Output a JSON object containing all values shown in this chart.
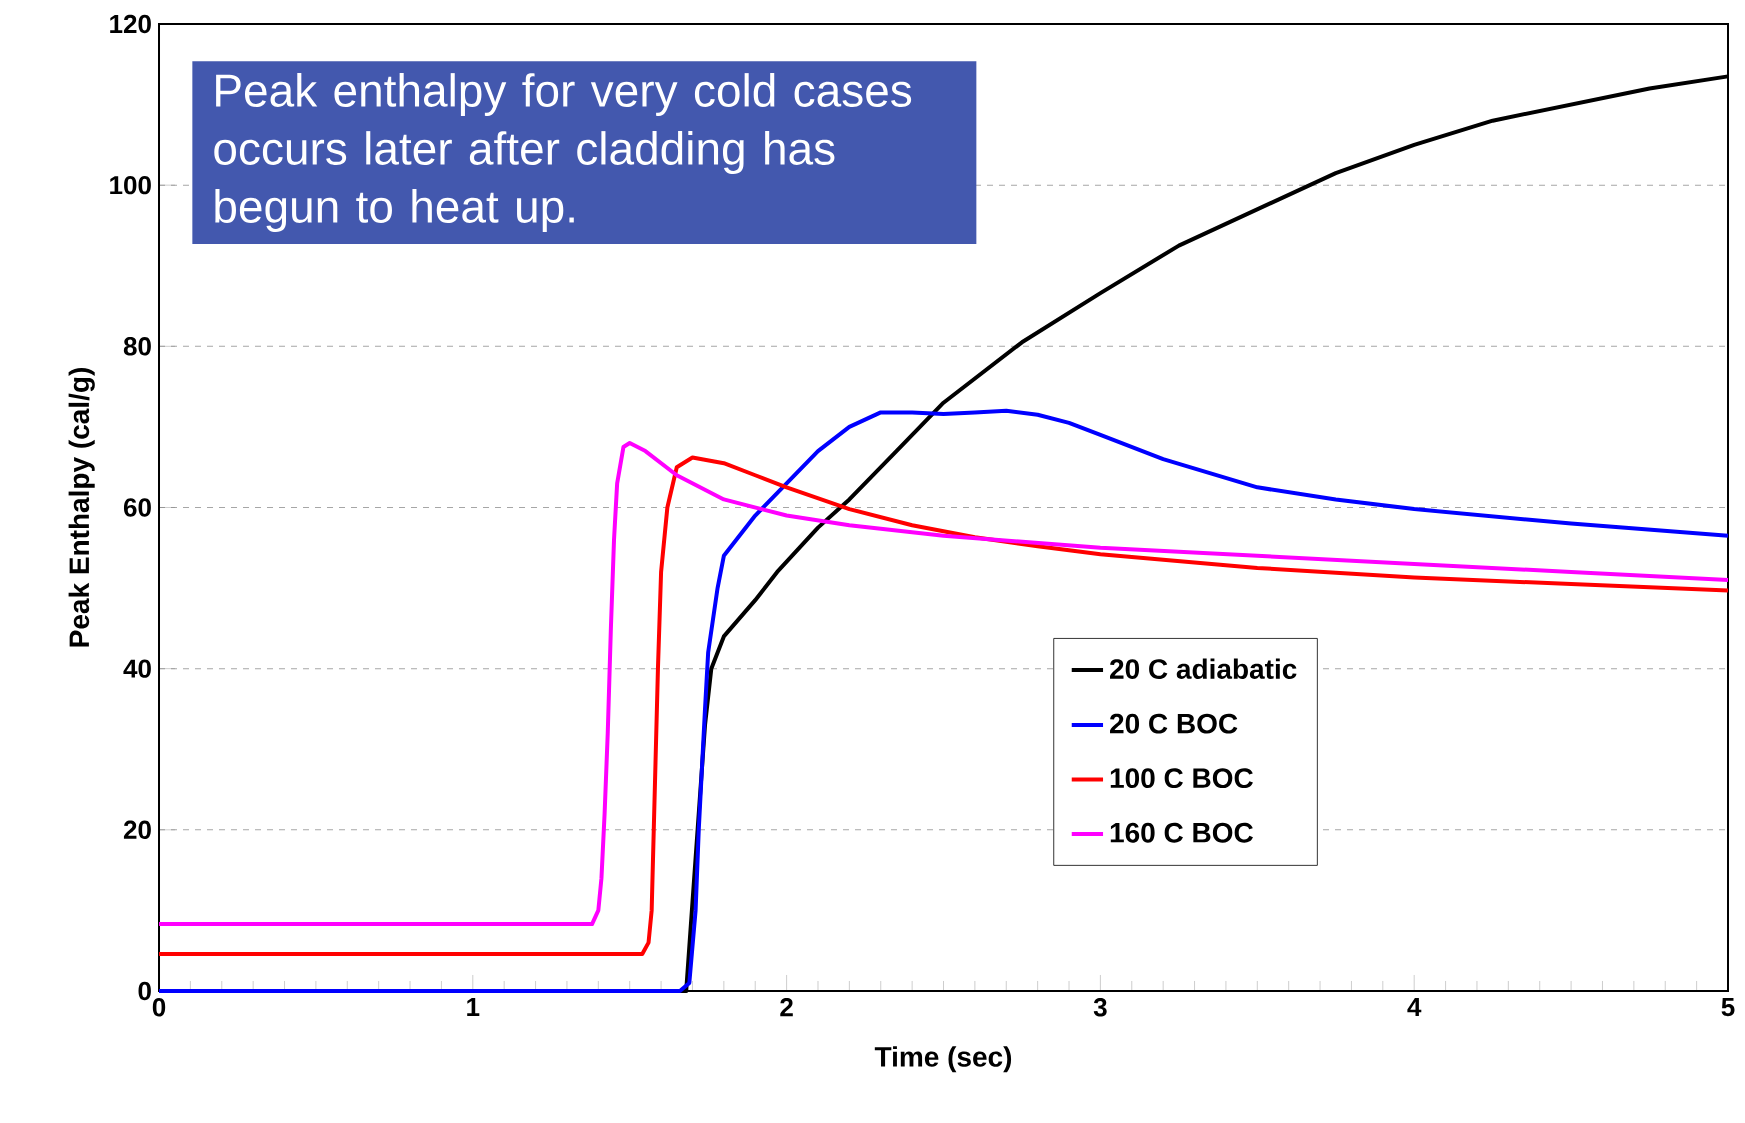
{
  "chart_data": {
    "type": "line",
    "xlabel": "Time (sec)",
    "ylabel": "Peak Enthalpy (cal/g)",
    "xlim": [
      0,
      5
    ],
    "ylim": [
      0,
      120
    ],
    "xticks": [
      0,
      1,
      2,
      3,
      4,
      5
    ],
    "yticks": [
      0,
      20,
      40,
      60,
      80,
      100,
      120
    ],
    "grid": "y",
    "legend": "right",
    "annotations": [
      "Peak enthalpy for very cold cases occurs later after cladding has begun to heat up."
    ],
    "series": [
      {
        "name": "20 C adiabatic",
        "color": "#000000",
        "x": [
          0,
          1.68,
          1.74,
          1.76,
          1.8,
          1.9,
          1.97,
          2.1,
          2.2,
          2.35,
          2.5,
          2.75,
          3.0,
          3.25,
          3.5,
          3.75,
          4.0,
          4.25,
          4.5,
          4.75,
          5.0
        ],
        "values": [
          0,
          0,
          33,
          40,
          44,
          48.5,
          52,
          57.5,
          61,
          67,
          73,
          80.5,
          86.6,
          92.5,
          97,
          101.5,
          105,
          108,
          110,
          112,
          113.5
        ]
      },
      {
        "name": "20 C BOC",
        "color": "#0000ff",
        "x": [
          0,
          1.66,
          1.69,
          1.71,
          1.72,
          1.74,
          1.75,
          1.78,
          1.8,
          1.9,
          2.0,
          2.1,
          2.2,
          2.3,
          2.4,
          2.5,
          2.6,
          2.7,
          2.8,
          2.9,
          3.0,
          3.2,
          3.5,
          3.75,
          4.0,
          4.5,
          5.0
        ],
        "values": [
          0,
          0,
          1,
          10,
          20,
          35,
          42,
          50,
          54,
          59,
          63,
          67,
          70,
          71.8,
          71.8,
          71.6,
          71.8,
          72,
          71.5,
          70.5,
          69,
          66,
          62.5,
          61,
          59.8,
          58,
          56.5
        ]
      },
      {
        "name": "100 C BOC",
        "color": "#ff0000",
        "x": [
          0,
          1.54,
          1.56,
          1.57,
          1.58,
          1.59,
          1.6,
          1.62,
          1.65,
          1.7,
          1.8,
          1.9,
          2.0,
          2.2,
          2.4,
          2.6,
          2.8,
          3.0,
          3.5,
          4.0,
          4.5,
          5.0
        ],
        "values": [
          4.6,
          4.6,
          6,
          10,
          25,
          40,
          52,
          60,
          65,
          66.2,
          65.5,
          64,
          62.5,
          59.8,
          57.8,
          56.3,
          55.2,
          54.2,
          52.5,
          51.3,
          50.5,
          49.7
        ]
      },
      {
        "name": "160 C BOC",
        "color": "#ff00ff",
        "x": [
          0,
          1.38,
          1.4,
          1.41,
          1.42,
          1.43,
          1.44,
          1.45,
          1.46,
          1.48,
          1.5,
          1.55,
          1.65,
          1.8,
          2.0,
          2.2,
          2.5,
          3.0,
          3.5,
          4.0,
          4.5,
          5.0
        ],
        "values": [
          8.3,
          8.3,
          10,
          14,
          22,
          32,
          45,
          56,
          63,
          67.5,
          68,
          67,
          64,
          61,
          59,
          57.8,
          56.5,
          55,
          54,
          53,
          52,
          51
        ]
      }
    ]
  }
}
